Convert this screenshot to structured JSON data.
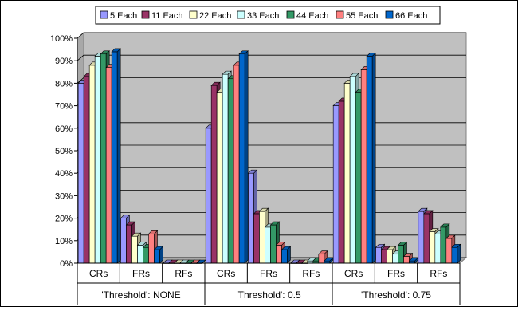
{
  "chart_data": {
    "type": "bar",
    "legend_position": "top",
    "grid": true,
    "ylim": [
      0,
      100
    ],
    "yticks": [
      "0%",
      "10%",
      "20%",
      "30%",
      "40%",
      "50%",
      "60%",
      "70%",
      "80%",
      "90%",
      "100%"
    ],
    "groups": [
      {
        "label": "'Threshold': NONE",
        "categories": [
          "CRs",
          "FRs",
          "RFs"
        ]
      },
      {
        "label": "'Threshold': 0.5",
        "categories": [
          "CRs",
          "FRs",
          "RFs"
        ]
      },
      {
        "label": "'Threshold': 0.75",
        "categories": [
          "CRs",
          "FRs",
          "RFs"
        ]
      }
    ],
    "series": [
      {
        "name": "5 Each",
        "color": "#9999ff",
        "values": [
          80,
          20,
          0,
          60,
          40,
          0,
          70,
          7,
          23
        ]
      },
      {
        "name": "11 Each",
        "color": "#993366",
        "values": [
          83,
          17,
          0,
          79,
          22,
          0,
          72,
          6,
          22
        ]
      },
      {
        "name": "22 Each",
        "color": "#ffffcc",
        "values": [
          88,
          12,
          0,
          76,
          23,
          0,
          80,
          6,
          14
        ]
      },
      {
        "name": "33 Each",
        "color": "#ccffff",
        "values": [
          92,
          8,
          0,
          84,
          16,
          1,
          83,
          4,
          13
        ]
      },
      {
        "name": "44 Each",
        "color": "#339966",
        "values": [
          93,
          7,
          0,
          82,
          17,
          1,
          76,
          8,
          16
        ]
      },
      {
        "name": "55 Each",
        "color": "#ff8080",
        "values": [
          87,
          13,
          0,
          88,
          8,
          4,
          86,
          3,
          11
        ]
      },
      {
        "name": "66 Each",
        "color": "#0066cc",
        "values": [
          94,
          6,
          0,
          93,
          6,
          1,
          92,
          1,
          7
        ]
      }
    ]
  }
}
